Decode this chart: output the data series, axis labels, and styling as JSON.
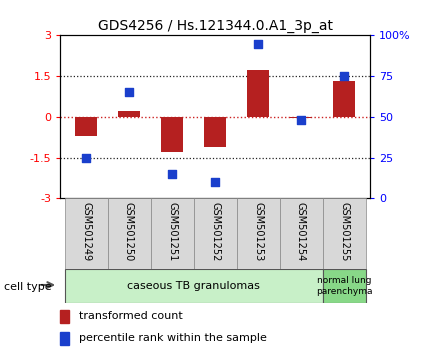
{
  "title": "GDS4256 / Hs.121344.0.A1_3p_at",
  "samples": [
    "GSM501249",
    "GSM501250",
    "GSM501251",
    "GSM501252",
    "GSM501253",
    "GSM501254",
    "GSM501255"
  ],
  "transformed_count": [
    -0.72,
    0.2,
    -1.3,
    -1.1,
    1.72,
    -0.05,
    1.32
  ],
  "percentile_rank": [
    25,
    65,
    15,
    10,
    95,
    48,
    75
  ],
  "left_ylim": [
    -3,
    3
  ],
  "right_ylim": [
    0,
    100
  ],
  "left_yticks": [
    -3,
    -1.5,
    0,
    1.5,
    3
  ],
  "right_yticks": [
    0,
    25,
    50,
    75,
    100
  ],
  "right_yticklabels": [
    "0",
    "25",
    "50",
    "75",
    "100%"
  ],
  "bar_color": "#b52020",
  "scatter_color": "#1a3fcc",
  "zero_line_color": "#cc2222",
  "dotted_line_color": "#222222",
  "cell_group1_label": "caseous TB granulomas",
  "cell_group1_color": "#c8f0c8",
  "cell_group1_count": 6,
  "cell_group2_label": "normal lung\nparenchyma",
  "cell_group2_color": "#88d888",
  "cell_group2_count": 1,
  "legend_bar_label": "transformed count",
  "legend_scatter_label": "percentile rank within the sample",
  "bar_width": 0.5,
  "scatter_size": 40,
  "figsize": [
    4.3,
    3.54
  ],
  "dpi": 100
}
